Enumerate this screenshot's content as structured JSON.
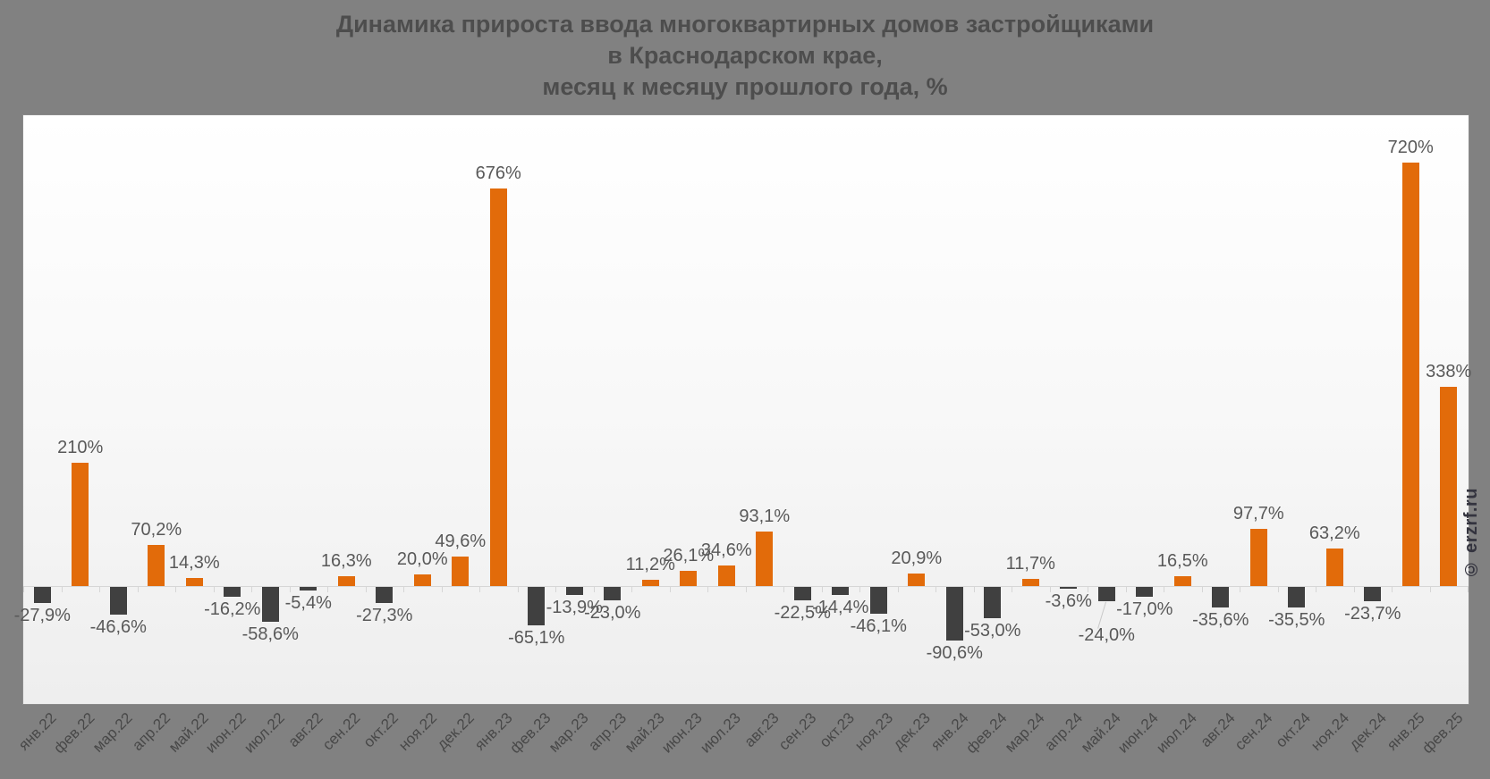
{
  "title": {
    "line1": "Динамика прироста ввода многоквартирных домов застройщиками",
    "line2": "в Краснодарском крае,",
    "line3": "месяц к месяцу прошлого года, %"
  },
  "watermark": "© erzrf.ru",
  "colors": {
    "positive_bar": "#E26B0A",
    "negative_bar": "#404040",
    "background": "#818181",
    "plot_background_top": "#FFFFFF",
    "plot_background_bottom": "#EEEEEE",
    "axis": "#D6D6D6",
    "value_label": "#595959",
    "title_text": "#4D4D4D",
    "x_label": "#484848",
    "watermark_text": "#34343F"
  },
  "chart_data": {
    "type": "bar",
    "title": "Динамика прироста ввода многоквартирных домов застройщиками в Краснодарском крае, месяц к месяцу прошлого года, %",
    "xlabel": "",
    "ylabel": "",
    "ylim": [
      -200,
      800
    ],
    "grid": false,
    "legend": false,
    "categories": [
      "янв.22",
      "фев.22",
      "мар.22",
      "апр.22",
      "май.22",
      "июн.22",
      "июл.22",
      "авг.22",
      "сен.22",
      "окт.22",
      "ноя.22",
      "дек.22",
      "янв.23",
      "фев.23",
      "мар.23",
      "апр.23",
      "май.23",
      "июн.23",
      "июл.23",
      "авг.23",
      "сен.23",
      "окт.23",
      "ноя.23",
      "дек.23",
      "янв.24",
      "фев.24",
      "мар.24",
      "апр.24",
      "май.24",
      "июн.24",
      "июл.24",
      "авг.24",
      "сен.24",
      "окт.24",
      "ноя.24",
      "дек.24",
      "янв.25",
      "фев.25"
    ],
    "values": [
      -27.9,
      210,
      -46.6,
      70.2,
      14.3,
      -16.2,
      -58.6,
      -5.4,
      16.3,
      -27.3,
      20.0,
      49.6,
      676,
      -65.1,
      -13.9,
      -23.0,
      11.2,
      26.1,
      34.6,
      93.1,
      -22.5,
      -14.4,
      -46.1,
      20.9,
      -90.6,
      -53.0,
      11.7,
      -3.6,
      -24.0,
      -17.0,
      16.5,
      -35.6,
      97.7,
      -35.5,
      63.2,
      -23.7,
      720,
      338
    ],
    "labels": [
      "-27,9%",
      "210%",
      "-46,6%",
      "70,2%",
      "14,3%",
      "-16,2%",
      "-58,6%",
      "-5,4%",
      "16,3%",
      "-27,3%",
      "20,0%",
      "49,6%",
      "676%",
      "-65,1%",
      "-13,9%",
      "-23,0%",
      "11,2%",
      "26,1%",
      "34,6%",
      "93,1%",
      "-22,5%",
      "-14,4%",
      "-46,1%",
      "20,9%",
      "-90,6%",
      "-53,0%",
      "11,7%",
      "-3,6%",
      "-24,0%",
      "-17,0%",
      "16,5%",
      "-35,6%",
      "97,7%",
      "-35,5%",
      "63,2%",
      "-23,7%",
      "720%",
      "338%"
    ],
    "callouts": [
      {
        "index": 28,
        "dy": 24
      }
    ]
  }
}
